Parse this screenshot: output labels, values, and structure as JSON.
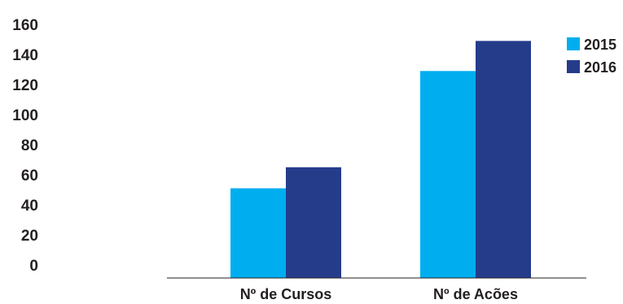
{
  "chart_data": {
    "type": "bar",
    "title": "",
    "xlabel": "",
    "ylabel": "",
    "categories": [
      "Nº de Cursos",
      "Nº de Acões"
    ],
    "series": [
      {
        "name": "2015",
        "color": "#00aeef",
        "values": [
          51,
          129
        ]
      },
      {
        "name": "2016",
        "color": "#253c8b",
        "values": [
          65,
          149
        ]
      }
    ],
    "y_ticks": [
      "0",
      "20",
      "40",
      "60",
      "80",
      "100",
      "120",
      "140",
      "160"
    ],
    "ylim": [
      0,
      160
    ],
    "grid": false,
    "legend_position": "top-right",
    "baseline_color": "#231f20"
  }
}
